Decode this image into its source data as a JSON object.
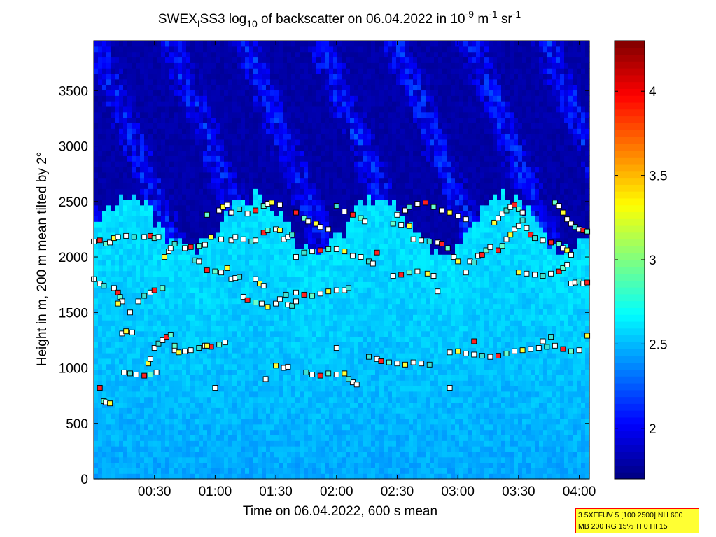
{
  "chart_data": {
    "type": "heatmap",
    "title": {
      "part1": "SWEX",
      "sub1": "I",
      "part2": "SS3 log",
      "sub2": "10",
      "part3": " of backscatter on 06.04.2022 in 10",
      "sup1": "-9",
      "part4": " m",
      "sup2": "-1",
      "part5": " sr",
      "sup3": "-1"
    },
    "xlabel": "Time on 06.04.2022, 600 s mean",
    "ylabel": "Height in m, 200 m mean tilted by 2°",
    "x_range_minutes": [
      0,
      245
    ],
    "ylim": [
      0,
      3950
    ],
    "x_ticks": [
      {
        "label": "00:30",
        "minutes": 30
      },
      {
        "label": "01:00",
        "minutes": 60
      },
      {
        "label": "01:30",
        "minutes": 90
      },
      {
        "label": "02:00",
        "minutes": 120
      },
      {
        "label": "02:30",
        "minutes": 150
      },
      {
        "label": "03:00",
        "minutes": 180
      },
      {
        "label": "03:30",
        "minutes": 210
      },
      {
        "label": "04:00",
        "minutes": 240
      }
    ],
    "y_ticks": [
      0,
      500,
      1000,
      1500,
      2000,
      2500,
      3000,
      3500
    ],
    "colorbar": {
      "range": [
        1.7,
        4.3
      ],
      "ticks": [
        {
          "label": "2",
          "value": 2
        },
        {
          "label": "2.5",
          "value": 2.5
        },
        {
          "label": "3",
          "value": 3
        },
        {
          "label": "3.5",
          "value": 3.5
        },
        {
          "label": "4",
          "value": 4
        }
      ]
    },
    "field_description": {
      "near_surface_value": 2.45,
      "mid_layer_value": 2.6,
      "upper_value": 1.8,
      "boundary_height_m": 2300
    },
    "marker_layers": [
      {
        "points": [
          [
            0,
            1800
          ],
          [
            3,
            1760
          ],
          [
            5,
            1740
          ],
          [
            10,
            1720
          ],
          [
            12,
            1680
          ],
          [
            13,
            1640
          ],
          [
            14,
            1600
          ],
          [
            12,
            1580
          ],
          [
            18,
            1500
          ],
          [
            22,
            1600
          ],
          [
            25,
            1650
          ],
          [
            28,
            1680
          ],
          [
            30,
            1700
          ],
          [
            34,
            1720
          ]
        ]
      },
      {
        "points": [
          [
            0,
            2140
          ],
          [
            3,
            2150
          ],
          [
            6,
            2120
          ],
          [
            8,
            2130
          ],
          [
            10,
            2170
          ],
          [
            12,
            2180
          ],
          [
            16,
            2190
          ],
          [
            20,
            2180
          ],
          [
            25,
            2180
          ],
          [
            28,
            2190
          ],
          [
            30,
            2170
          ],
          [
            32,
            2180
          ]
        ]
      },
      {
        "points": [
          [
            14,
            1310
          ],
          [
            16,
            1330
          ],
          [
            19,
            1320
          ],
          [
            30,
            1180
          ],
          [
            32,
            1220
          ],
          [
            34,
            1250
          ],
          [
            36,
            1280
          ],
          [
            38,
            1300
          ],
          [
            40,
            1160
          ],
          [
            42,
            1140
          ],
          [
            45,
            1150
          ],
          [
            48,
            1160
          ],
          [
            52,
            1180
          ],
          [
            55,
            1200
          ],
          [
            58,
            1190
          ],
          [
            62,
            1210
          ],
          [
            65,
            1230
          ]
        ]
      },
      {
        "points": [
          [
            15,
            960
          ],
          [
            18,
            950
          ],
          [
            21,
            940
          ],
          [
            25,
            930
          ],
          [
            28,
            940
          ],
          [
            31,
            960
          ],
          [
            27,
            1040
          ],
          [
            28,
            1080
          ]
        ]
      },
      {
        "points": [
          [
            3,
            820
          ],
          [
            5,
            700
          ],
          [
            6,
            690
          ],
          [
            8,
            680
          ]
        ]
      },
      {
        "points": [
          [
            35,
            2000
          ],
          [
            37,
            2050
          ],
          [
            38,
            2080
          ],
          [
            40,
            2120
          ],
          [
            45,
            2080
          ],
          [
            48,
            2090
          ],
          [
            52,
            2100
          ],
          [
            55,
            2110
          ],
          [
            58,
            2180
          ],
          [
            63,
            2160
          ],
          [
            68,
            2150
          ]
        ]
      },
      {
        "points": [
          [
            50,
            1970
          ],
          [
            52,
            1960
          ],
          [
            56,
            1880
          ],
          [
            60,
            1870
          ],
          [
            63,
            1860
          ],
          [
            66,
            1900
          ],
          [
            68,
            1800
          ],
          [
            70,
            1810
          ],
          [
            72,
            1820
          ]
        ]
      },
      {
        "points": [
          [
            56,
            2380
          ],
          [
            62,
            2420
          ],
          [
            64,
            2450
          ],
          [
            66,
            2470
          ],
          [
            68,
            2400
          ],
          [
            72,
            2430
          ],
          [
            76,
            2390
          ],
          [
            80,
            2420
          ],
          [
            84,
            2460
          ],
          [
            86,
            2480
          ],
          [
            88,
            2490
          ],
          [
            92,
            2470
          ]
        ]
      },
      {
        "points": [
          [
            70,
            2180
          ],
          [
            74,
            2160
          ],
          [
            78,
            2140
          ],
          [
            80,
            2150
          ],
          [
            84,
            2220
          ],
          [
            86,
            2240
          ],
          [
            90,
            2250
          ],
          [
            92,
            2240
          ],
          [
            94,
            2160
          ],
          [
            96,
            2180
          ],
          [
            98,
            2200
          ]
        ]
      },
      {
        "points": [
          [
            74,
            1640
          ],
          [
            76,
            1610
          ],
          [
            80,
            1590
          ],
          [
            83,
            1580
          ],
          [
            86,
            1550
          ],
          [
            90,
            1580
          ],
          [
            92,
            1620
          ],
          [
            95,
            1660
          ],
          [
            100,
            1680
          ],
          [
            104,
            1660
          ],
          [
            108,
            1650
          ],
          [
            112,
            1670
          ],
          [
            116,
            1690
          ],
          [
            120,
            1700
          ],
          [
            124,
            1700
          ],
          [
            126,
            1720
          ]
        ]
      },
      {
        "points": [
          [
            80,
            1800
          ],
          [
            82,
            1760
          ],
          [
            84,
            1740
          ],
          [
            96,
            1570
          ],
          [
            98,
            1560
          ],
          [
            100,
            1600
          ]
        ]
      },
      {
        "points": [
          [
            100,
            2000
          ],
          [
            104,
            2040
          ],
          [
            108,
            2050
          ],
          [
            112,
            2060
          ],
          [
            116,
            2070
          ],
          [
            120,
            2070
          ],
          [
            124,
            2050
          ],
          [
            128,
            2010
          ],
          [
            132,
            2000
          ],
          [
            136,
            1960
          ],
          [
            138,
            1940
          ],
          [
            140,
            2040
          ]
        ]
      },
      {
        "points": [
          [
            100,
            2400
          ],
          [
            104,
            2350
          ],
          [
            106,
            2320
          ],
          [
            110,
            2300
          ],
          [
            112,
            2270
          ],
          [
            116,
            2250
          ],
          [
            120,
            2460
          ],
          [
            124,
            2410
          ],
          [
            128,
            2380
          ],
          [
            132,
            2350
          ],
          [
            134,
            2320
          ]
        ]
      },
      {
        "points": [
          [
            90,
            1020
          ],
          [
            94,
            1000
          ],
          [
            96,
            1010
          ],
          [
            105,
            960
          ],
          [
            108,
            940
          ],
          [
            112,
            930
          ],
          [
            116,
            950
          ],
          [
            120,
            940
          ],
          [
            124,
            950
          ],
          [
            128,
            870
          ],
          [
            130,
            850
          ],
          [
            126,
            900
          ],
          [
            85,
            900
          ]
        ]
      },
      {
        "points": [
          [
            136,
            1100
          ],
          [
            140,
            1080
          ],
          [
            142,
            1060
          ],
          [
            146,
            1050
          ],
          [
            150,
            1040
          ],
          [
            154,
            1030
          ],
          [
            158,
            1050
          ],
          [
            162,
            1040
          ],
          [
            166,
            1030
          ]
        ]
      },
      {
        "points": [
          [
            148,
            2300
          ],
          [
            152,
            2290
          ],
          [
            156,
            2280
          ],
          [
            158,
            2160
          ],
          [
            162,
            2150
          ],
          [
            166,
            2140
          ],
          [
            170,
            2130
          ],
          [
            172,
            2120
          ],
          [
            175,
            2080
          ],
          [
            178,
            2000
          ],
          [
            180,
            1960
          ],
          [
            184,
            1860
          ]
        ]
      },
      {
        "points": [
          [
            150,
            2380
          ],
          [
            154,
            2420
          ],
          [
            156,
            2450
          ],
          [
            160,
            2480
          ],
          [
            164,
            2490
          ],
          [
            168,
            2450
          ],
          [
            172,
            2420
          ],
          [
            176,
            2400
          ],
          [
            180,
            2370
          ],
          [
            184,
            2340
          ]
        ]
      },
      {
        "points": [
          [
            148,
            1830
          ],
          [
            152,
            1840
          ],
          [
            156,
            1860
          ],
          [
            160,
            1870
          ],
          [
            165,
            1850
          ],
          [
            168,
            1830
          ],
          [
            170,
            1690
          ]
        ]
      },
      {
        "points": [
          [
            176,
            1140
          ],
          [
            180,
            1150
          ],
          [
            184,
            1130
          ],
          [
            188,
            1120
          ],
          [
            192,
            1110
          ],
          [
            196,
            1100
          ],
          [
            200,
            1110
          ],
          [
            204,
            1130
          ],
          [
            208,
            1150
          ],
          [
            212,
            1160
          ],
          [
            216,
            1170
          ],
          [
            220,
            1180
          ],
          [
            224,
            1190
          ],
          [
            228,
            1200
          ],
          [
            232,
            1170
          ],
          [
            236,
            1150
          ],
          [
            240,
            1160
          ],
          [
            244,
            1290
          ]
        ]
      },
      {
        "points": [
          [
            186,
            1960
          ],
          [
            188,
            1950
          ],
          [
            190,
            2010
          ],
          [
            192,
            2020
          ],
          [
            194,
            2060
          ],
          [
            196,
            2090
          ],
          [
            198,
            2310
          ],
          [
            200,
            2350
          ],
          [
            202,
            2390
          ],
          [
            204,
            2420
          ],
          [
            206,
            2450
          ],
          [
            208,
            2470
          ],
          [
            210,
            2430
          ],
          [
            212,
            2400
          ]
        ]
      },
      {
        "points": [
          [
            200,
            2060
          ],
          [
            202,
            2100
          ],
          [
            204,
            2160
          ],
          [
            206,
            2200
          ],
          [
            208,
            2250
          ],
          [
            210,
            2280
          ],
          [
            212,
            2330
          ],
          [
            214,
            2260
          ],
          [
            216,
            2200
          ]
        ]
      },
      {
        "points": [
          [
            210,
            1860
          ],
          [
            214,
            1850
          ],
          [
            218,
            1840
          ],
          [
            222,
            1830
          ],
          [
            226,
            1850
          ],
          [
            230,
            1870
          ],
          [
            232,
            1900
          ],
          [
            234,
            1930
          ]
        ]
      },
      {
        "points": [
          [
            218,
            2170
          ],
          [
            222,
            2150
          ],
          [
            226,
            2130
          ],
          [
            230,
            2120
          ],
          [
            232,
            2080
          ],
          [
            234,
            2060
          ],
          [
            236,
            2020
          ]
        ]
      },
      {
        "points": [
          [
            228,
            2490
          ],
          [
            230,
            2460
          ],
          [
            232,
            2400
          ],
          [
            234,
            2340
          ],
          [
            236,
            2300
          ],
          [
            238,
            2270
          ],
          [
            240,
            2250
          ],
          [
            242,
            2240
          ],
          [
            244,
            2230
          ]
        ]
      },
      {
        "points": [
          [
            236,
            1760
          ],
          [
            238,
            1770
          ],
          [
            240,
            1780
          ],
          [
            242,
            1760
          ],
          [
            244,
            1770
          ]
        ]
      },
      {
        "points": [
          [
            176,
            820
          ],
          [
            188,
            1240
          ],
          [
            40,
            1200
          ],
          [
            60,
            820
          ],
          [
            56,
            1200
          ],
          [
            120,
            1180
          ],
          [
            222,
            1240
          ],
          [
            226,
            1280
          ]
        ]
      }
    ]
  },
  "info_box": {
    "line1": "3.5XEFUV 5 [100 2500] NH 600",
    "line2": "MB 200 RG 15% TI 0 HI 15"
  }
}
